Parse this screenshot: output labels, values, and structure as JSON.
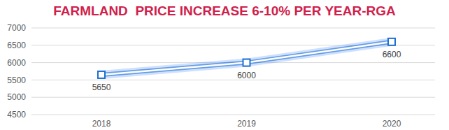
{
  "chart_data": {
    "type": "line",
    "title": "FARMLAND  PRICE INCREASE 6-10% PER YEAR-RGA",
    "categories": [
      "2018",
      "2019",
      "2020"
    ],
    "values": [
      5650,
      6000,
      6600
    ],
    "color": "#ffffff",
    "marker": "square",
    "ylim": [
      4500,
      7000
    ],
    "yticks": [
      4500,
      5000,
      5500,
      6000,
      6500,
      7000
    ],
    "grid": true,
    "data_labels": true
  }
}
